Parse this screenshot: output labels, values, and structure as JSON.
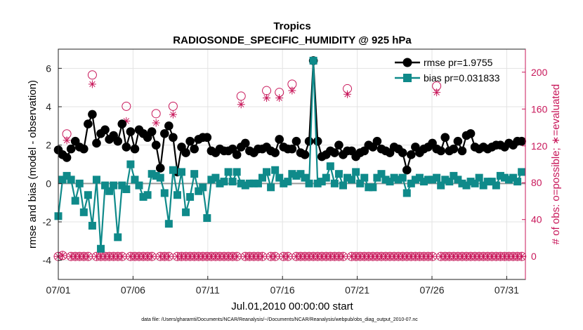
{
  "chart_data": {
    "type": "line",
    "title": "Tropics",
    "subtitle": "RADIOSONDE_SPECIFIC_HUMIDITY @ 925 hPa",
    "xlabel": "Jul.01,2010 00:00:00 start",
    "ylabel": "rmse and bias (model - observation)",
    "y2label": "# of obs: o=possible; ∗=evaluated",
    "xlim": [
      0,
      31.25
    ],
    "ylim": [
      -5,
      7
    ],
    "y2lim": [
      -25,
      225
    ],
    "x_ticks": [
      0,
      5,
      10,
      15,
      20,
      25,
      30
    ],
    "x_tick_labels": [
      "07/01",
      "07/06",
      "07/11",
      "07/16",
      "07/21",
      "07/26",
      "07/31"
    ],
    "y_ticks": [
      -4,
      -2,
      0,
      2,
      4,
      6
    ],
    "y_tick_labels": [
      "-4",
      "-2",
      "0",
      "2",
      "4",
      "6"
    ],
    "y2_ticks": [
      0,
      40,
      80,
      120,
      160,
      200
    ],
    "y2_tick_labels": [
      "0",
      "40",
      "80",
      "120",
      "160",
      "200"
    ],
    "legend_position": "top-right",
    "colors": {
      "rmse": "#000000",
      "bias": "#0f8a8a",
      "obs": "#c8175a",
      "zero_line": "#9a9a9a"
    },
    "series": [
      {
        "name": "rmse pr=1.9755",
        "axis": "left",
        "marker": "circle",
        "values": [
          1.75,
          1.5,
          1.35,
          1.8,
          2.2,
          1.9,
          1.8,
          3.1,
          3.6,
          2.1,
          2.6,
          2.8,
          2.3,
          2.5,
          2.2,
          3.1,
          1.9,
          2.7,
          1.8,
          2.8,
          2.6,
          2.4,
          2.7,
          2.0,
          0.8,
          2.6,
          3.0,
          2.4,
          0.6,
          1.9,
          1.6,
          2.2,
          1.8,
          2.3,
          2.4,
          2.4,
          1.7,
          1.6,
          1.8,
          1.7,
          1.7,
          1.8,
          1.5,
          1.9,
          2.1,
          1.7,
          1.6,
          1.8,
          1.8,
          1.9,
          1.7,
          1.6,
          2.3,
          1.9,
          1.8,
          1.8,
          2.2,
          1.6,
          1.5,
          2.2,
          6.4,
          2.2,
          1.4,
          1.5,
          1.7,
          1.6,
          2.0,
          1.5,
          1.7,
          1.7,
          1.4,
          1.6,
          1.7,
          2.0,
          1.9,
          2.2,
          1.8,
          1.7,
          1.6,
          1.9,
          1.8,
          1.6,
          0.7,
          1.5,
          1.9,
          1.6,
          1.8,
          1.9,
          2.1,
          1.8,
          1.7,
          2.4,
          1.7,
          1.8,
          2.2,
          1.7,
          2.5,
          2.6,
          1.9,
          1.8,
          1.9,
          1.8,
          1.9,
          2.0,
          2.0,
          1.9,
          2.1,
          2.0,
          2.2,
          2.2
        ]
      },
      {
        "name": "bias pr=0.031833",
        "axis": "left",
        "marker": "square",
        "values": [
          -1.7,
          0.2,
          0.4,
          0.2,
          -0.9,
          0.0,
          -1.5,
          -0.6,
          -2.2,
          0.2,
          -3.4,
          -0.1,
          -0.4,
          -0.1,
          -2.8,
          -0.1,
          -0.3,
          1.0,
          0.2,
          -0.1,
          -0.7,
          -0.6,
          0.5,
          0.4,
          0.3,
          -0.5,
          -2.1,
          0.7,
          -0.6,
          0.6,
          -1.5,
          -0.7,
          0.5,
          -0.4,
          -0.2,
          -1.8,
          0.2,
          0.3,
          0.0,
          0.1,
          0.6,
          0.1,
          0.6,
          0.0,
          -0.1,
          0.0,
          0.0,
          0.0,
          0.3,
          0.6,
          -0.2,
          0.7,
          0.3,
          0.0,
          0.1,
          0.5,
          0.4,
          0.5,
          0.3,
          0.0,
          6.4,
          0.0,
          0.1,
          0.3,
          0.9,
          0.0,
          0.5,
          -0.1,
          0.3,
          0.2,
          0.6,
          0.0,
          0.3,
          -0.2,
          -0.2,
          0.3,
          0.5,
          0.2,
          0.1,
          0.3,
          0.2,
          0.3,
          -0.5,
          0.0,
          0.2,
          0.3,
          0.1,
          0.2,
          0.2,
          0.3,
          -0.1,
          0.2,
          0.1,
          0.4,
          0.2,
          0.0,
          -0.1,
          0.1,
          0.0,
          0.3,
          -0.1,
          0.1,
          0.1,
          -0.1,
          0.4,
          0.3,
          0.2,
          0.3,
          0.1,
          0.6
        ]
      },
      {
        "name": "possible obs",
        "axis": "right",
        "marker": "circle-open",
        "values": [
          0,
          1,
          133,
          0,
          0,
          0,
          0,
          0,
          197,
          0,
          0,
          0,
          0,
          0,
          0,
          0,
          163,
          0,
          0,
          0,
          0,
          0,
          0,
          155,
          0,
          0,
          0,
          163,
          0,
          0,
          0,
          0,
          0,
          0,
          0,
          0,
          0,
          0,
          0,
          0,
          0,
          0,
          0,
          174,
          0,
          0,
          0,
          0,
          0,
          180,
          0,
          0,
          178,
          0,
          0,
          187,
          0,
          0,
          0,
          0,
          0,
          0,
          0,
          0,
          0,
          0,
          0,
          0,
          182,
          0,
          0,
          0,
          0,
          0,
          0,
          0,
          0,
          0,
          0,
          0,
          0,
          0,
          0,
          0,
          0,
          0,
          0,
          0,
          0,
          185,
          0,
          0,
          0,
          0,
          0,
          0,
          0,
          0,
          0,
          0,
          0,
          0,
          0,
          0,
          0,
          0,
          0,
          0,
          0,
          0
        ]
      },
      {
        "name": "evaluated obs",
        "axis": "right",
        "marker": "asterisk",
        "values": [
          0,
          1,
          126,
          0,
          0,
          0,
          0,
          0,
          187,
          0,
          0,
          0,
          0,
          0,
          0,
          0,
          147,
          0,
          0,
          0,
          0,
          0,
          0,
          145,
          0,
          0,
          0,
          154,
          0,
          0,
          0,
          0,
          0,
          0,
          0,
          0,
          0,
          0,
          0,
          0,
          0,
          0,
          0,
          165,
          0,
          0,
          0,
          0,
          0,
          172,
          0,
          0,
          172,
          0,
          0,
          180,
          0,
          0,
          0,
          0,
          0,
          0,
          0,
          0,
          0,
          0,
          0,
          0,
          176,
          0,
          0,
          0,
          0,
          0,
          0,
          0,
          0,
          0,
          0,
          0,
          0,
          0,
          0,
          0,
          0,
          0,
          0,
          0,
          0,
          178,
          0,
          0,
          0,
          0,
          0,
          0,
          0,
          0,
          0,
          0,
          0,
          0,
          0,
          0,
          0,
          0,
          0,
          0,
          0,
          0
        ]
      }
    ],
    "legend": [
      "rmse pr=1.9755",
      "bias pr=0.031833"
    ]
  },
  "footer": "data file: /Users/gharamti/Documents/NCAR/Reanalysis/~/Documents/NCAR/Reanalysis/webpub/obs_diag_output_2010-07.nc"
}
